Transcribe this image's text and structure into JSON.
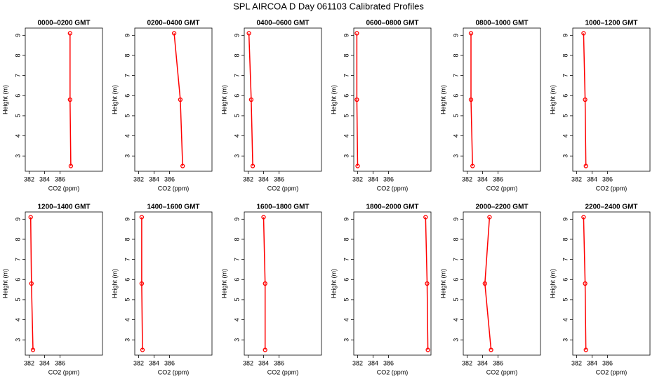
{
  "title": "SPL AIRCOA D  Day 061103  Calibrated Profiles",
  "chart_data": [
    {
      "type": "line",
      "title": "0000–0200 GMT",
      "xlabel": "CO2 (ppm)",
      "ylabel": "Height (m)",
      "x": [
        387.4,
        387.3,
        387.3
      ],
      "values": [
        2.5,
        5.8,
        9.1
      ],
      "color": "#ff0000",
      "xlim": [
        381.5,
        391.5
      ],
      "xticks": [
        382,
        384,
        386
      ],
      "ylim": [
        2.24,
        9.36
      ],
      "yticks": [
        3,
        4,
        5,
        6,
        7,
        8,
        9
      ]
    },
    {
      "type": "line",
      "title": "0200–0400 GMT",
      "xlabel": "CO2 (ppm)",
      "ylabel": "Height (m)",
      "x": [
        387.7,
        387.4,
        386.6
      ],
      "values": [
        2.5,
        5.8,
        9.1
      ],
      "color": "#ff0000",
      "xlim": [
        381.5,
        391.5
      ],
      "xticks": [
        382,
        384,
        386
      ],
      "ylim": [
        2.24,
        9.36
      ],
      "yticks": [
        3,
        4,
        5,
        6,
        7,
        8,
        9
      ]
    },
    {
      "type": "line",
      "title": "0400–0600 GMT",
      "xlabel": "CO2 (ppm)",
      "ylabel": "Height (m)",
      "x": [
        382.6,
        382.4,
        382.1
      ],
      "values": [
        2.5,
        5.8,
        9.1
      ],
      "color": "#ff0000",
      "xlim": [
        381.5,
        391.5
      ],
      "xticks": [
        382,
        384,
        386
      ],
      "ylim": [
        2.24,
        9.36
      ],
      "yticks": [
        3,
        4,
        5,
        6,
        7,
        8,
        9
      ]
    },
    {
      "type": "line",
      "title": "0600–0800 GMT",
      "xlabel": "CO2 (ppm)",
      "ylabel": "Height (m)",
      "x": [
        382.0,
        381.9,
        381.9
      ],
      "values": [
        2.5,
        5.8,
        9.1
      ],
      "color": "#ff0000",
      "xlim": [
        381.5,
        391.5
      ],
      "xticks": [
        382,
        384,
        386
      ],
      "ylim": [
        2.24,
        9.36
      ],
      "yticks": [
        3,
        4,
        5,
        6,
        7,
        8,
        9
      ]
    },
    {
      "type": "line",
      "title": "0800–1000 GMT",
      "xlabel": "CO2 (ppm)",
      "ylabel": "Height (m)",
      "x": [
        382.7,
        382.5,
        382.5
      ],
      "values": [
        2.5,
        5.8,
        9.1
      ],
      "color": "#ff0000",
      "xlim": [
        381.5,
        391.5
      ],
      "xticks": [
        382,
        384,
        386
      ],
      "ylim": [
        2.24,
        9.36
      ],
      "yticks": [
        3,
        4,
        5,
        6,
        7,
        8,
        9
      ]
    },
    {
      "type": "line",
      "title": "1000–1200 GMT",
      "xlabel": "CO2 (ppm)",
      "ylabel": "Height (m)",
      "x": [
        383.2,
        383.1,
        382.9
      ],
      "values": [
        2.5,
        5.8,
        9.1
      ],
      "color": "#ff0000",
      "xlim": [
        381.5,
        391.5
      ],
      "xticks": [
        382,
        384,
        386
      ],
      "ylim": [
        2.24,
        9.36
      ],
      "yticks": [
        3,
        4,
        5,
        6,
        7,
        8,
        9
      ]
    },
    {
      "type": "line",
      "title": "1200–1400 GMT",
      "xlabel": "CO2 (ppm)",
      "ylabel": "Height (m)",
      "x": [
        382.5,
        382.3,
        382.2
      ],
      "values": [
        2.5,
        5.8,
        9.1
      ],
      "color": "#ff0000",
      "xlim": [
        381.5,
        391.5
      ],
      "xticks": [
        382,
        384,
        386
      ],
      "ylim": [
        2.24,
        9.36
      ],
      "yticks": [
        3,
        4,
        5,
        6,
        7,
        8,
        9
      ]
    },
    {
      "type": "line",
      "title": "1400–1600 GMT",
      "xlabel": "CO2 (ppm)",
      "ylabel": "Height (m)",
      "x": [
        382.5,
        382.4,
        382.4
      ],
      "values": [
        2.5,
        5.8,
        9.1
      ],
      "color": "#ff0000",
      "xlim": [
        381.5,
        391.5
      ],
      "xticks": [
        382,
        384,
        386
      ],
      "ylim": [
        2.24,
        9.36
      ],
      "yticks": [
        3,
        4,
        5,
        6,
        7,
        8,
        9
      ]
    },
    {
      "type": "line",
      "title": "1600–1800 GMT",
      "xlabel": "CO2 (ppm)",
      "ylabel": "Height (m)",
      "x": [
        384.2,
        384.2,
        384.0
      ],
      "values": [
        2.5,
        5.8,
        9.1
      ],
      "color": "#ff0000",
      "xlim": [
        381.5,
        391.5
      ],
      "xticks": [
        382,
        384,
        386
      ],
      "ylim": [
        2.24,
        9.36
      ],
      "yticks": [
        3,
        4,
        5,
        6,
        7,
        8,
        9
      ]
    },
    {
      "type": "line",
      "title": "1800–2000 GMT",
      "xlabel": "CO2 (ppm)",
      "ylabel": "Height (m)",
      "x": [
        391.1,
        391.0,
        390.8
      ],
      "values": [
        2.5,
        5.8,
        9.1
      ],
      "color": "#ff0000",
      "xlim": [
        381.5,
        391.5
      ],
      "xticks": [
        382,
        384,
        386
      ],
      "ylim": [
        2.24,
        9.36
      ],
      "yticks": [
        3,
        4,
        5,
        6,
        7,
        8,
        9
      ]
    },
    {
      "type": "line",
      "title": "2000–2200 GMT",
      "xlabel": "CO2 (ppm)",
      "ylabel": "Height (m)",
      "x": [
        385.1,
        384.3,
        384.9
      ],
      "values": [
        2.5,
        5.8,
        9.1
      ],
      "color": "#ff0000",
      "xlim": [
        381.5,
        391.5
      ],
      "xticks": [
        382,
        384,
        386
      ],
      "ylim": [
        2.24,
        9.36
      ],
      "yticks": [
        3,
        4,
        5,
        6,
        7,
        8,
        9
      ]
    },
    {
      "type": "line",
      "title": "2200–2400 GMT",
      "xlabel": "CO2 (ppm)",
      "ylabel": "Height (m)",
      "x": [
        383.2,
        383.1,
        382.9
      ],
      "values": [
        2.5,
        5.8,
        9.1
      ],
      "color": "#ff0000",
      "xlim": [
        381.5,
        391.5
      ],
      "xticks": [
        382,
        384,
        386
      ],
      "ylim": [
        2.24,
        9.36
      ],
      "yticks": [
        3,
        4,
        5,
        6,
        7,
        8,
        9
      ]
    }
  ]
}
